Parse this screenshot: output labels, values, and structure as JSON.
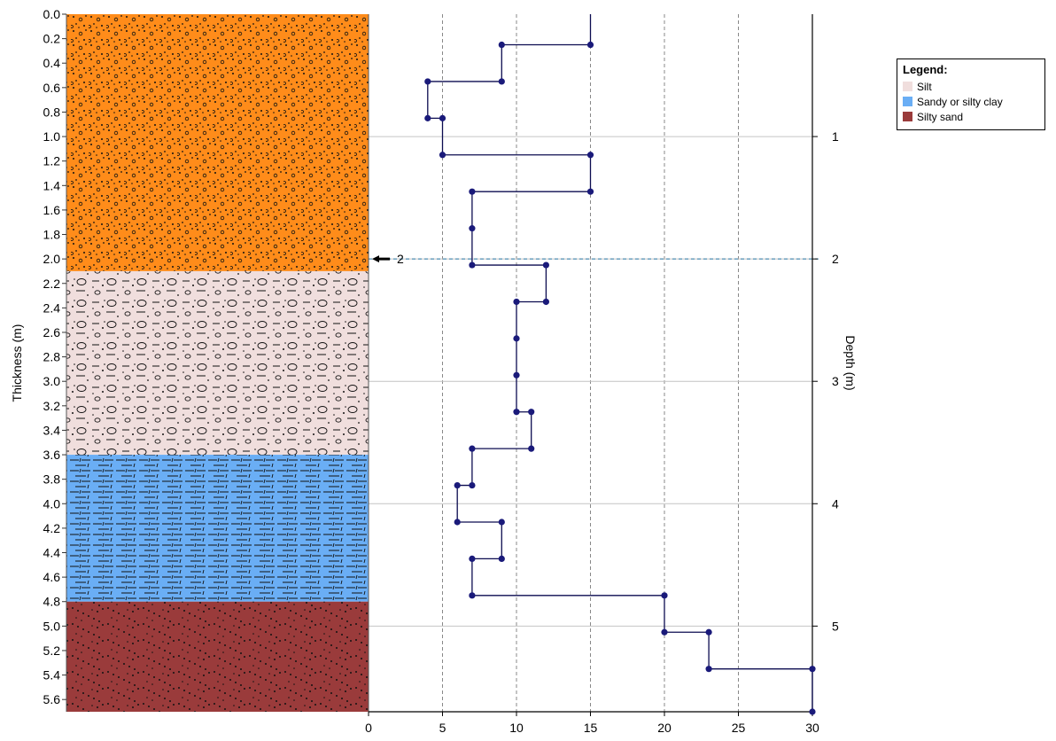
{
  "chart_data": {
    "type": "line",
    "subtype": "step-profile-with-lithology-column",
    "left_axis": {
      "label": "Thickness (m)",
      "ticks": [
        "0.0",
        "0.2",
        "0.4",
        "0.6",
        "0.8",
        "1.0",
        "1.2",
        "1.4",
        "1.6",
        "1.8",
        "2.0",
        "2.2",
        "2.4",
        "2.6",
        "2.8",
        "3.0",
        "3.2",
        "3.4",
        "3.6",
        "3.8",
        "4.0",
        "4.2",
        "4.4",
        "4.6",
        "4.8",
        "5.0",
        "5.2",
        "5.4",
        "5.6"
      ]
    },
    "right_axis": {
      "label": "Depth (m)",
      "ticks": [
        "1",
        "2",
        "3",
        "4",
        "5"
      ]
    },
    "x_axis": {
      "ticks": [
        "0",
        "5",
        "10",
        "15",
        "20",
        "25",
        "30"
      ],
      "xlim": [
        0,
        30
      ]
    },
    "depth_range": [
      0,
      5.7
    ],
    "grid": true,
    "layers": [
      {
        "name": "",
        "top": 0.0,
        "bottom": 2.1,
        "color": "#ff8c1a",
        "pattern": "gravelly"
      },
      {
        "name": "Silt",
        "top": 2.1,
        "bottom": 3.6,
        "color": "#f0dedd",
        "pattern": "silt"
      },
      {
        "name": "Sandy or silty clay",
        "top": 3.6,
        "bottom": 4.8,
        "color": "#6aaef5",
        "pattern": "clay"
      },
      {
        "name": "Silty sand",
        "top": 4.8,
        "bottom": 5.7,
        "color": "#9a3b3b",
        "pattern": "sand"
      }
    ],
    "water_level": {
      "depth": 2.0,
      "label": "2"
    },
    "series": [
      {
        "points": [
          [
            15,
            0.0
          ],
          [
            15,
            0.25
          ],
          [
            9,
            0.25
          ],
          [
            9,
            0.55
          ],
          [
            4,
            0.55
          ],
          [
            4,
            0.85
          ],
          [
            5,
            0.85
          ],
          [
            5,
            1.15
          ],
          [
            15,
            1.15
          ],
          [
            15,
            1.45
          ],
          [
            7,
            1.45
          ],
          [
            7,
            1.75
          ],
          [
            7,
            2.05
          ],
          [
            12,
            2.05
          ],
          [
            12,
            2.35
          ],
          [
            10,
            2.35
          ],
          [
            10,
            2.65
          ],
          [
            10,
            2.95
          ],
          [
            10,
            3.25
          ],
          [
            11,
            3.25
          ],
          [
            11,
            3.55
          ],
          [
            7,
            3.55
          ],
          [
            7,
            3.85
          ],
          [
            6,
            3.85
          ],
          [
            6,
            4.15
          ],
          [
            9,
            4.15
          ],
          [
            9,
            4.45
          ],
          [
            7,
            4.45
          ],
          [
            7,
            4.75
          ],
          [
            20,
            4.75
          ],
          [
            20,
            5.05
          ],
          [
            23,
            5.05
          ],
          [
            23,
            5.35
          ],
          [
            30,
            5.35
          ],
          [
            30,
            5.7
          ]
        ]
      }
    ],
    "legend": {
      "title": "Legend:",
      "placement": "top-right",
      "items": [
        {
          "label": "Silt",
          "color": "#f0dedd"
        },
        {
          "label": "Sandy or silty clay",
          "color": "#6aaef5"
        },
        {
          "label": "Silty sand",
          "color": "#9a3b3b"
        }
      ]
    }
  }
}
